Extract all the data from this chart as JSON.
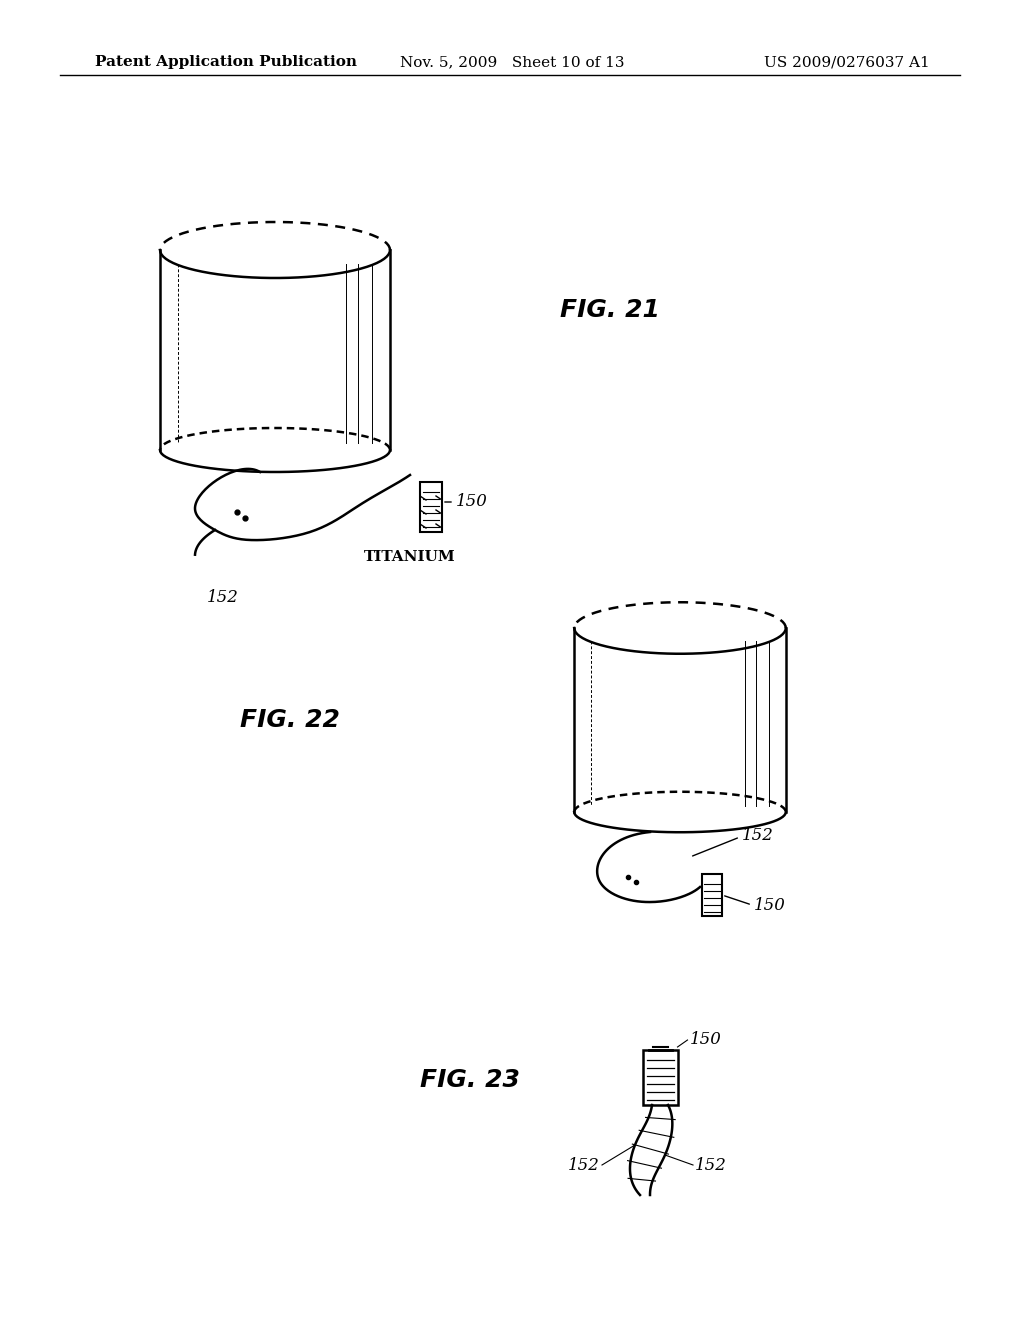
{
  "background_color": "#ffffff",
  "header_left": "Patent Application Publication",
  "header_mid": "Nov. 5, 2009   Sheet 10 of 13",
  "header_right": "US 2009/0276037 A1",
  "fig21_label": "FIG. 21",
  "fig22_label": "FIG. 22",
  "fig23_label": "FIG. 23",
  "label_150_fig21": "150",
  "label_152_fig21": "152",
  "label_titanium": "TITANIUM",
  "label_150_fig22": "150",
  "label_152_fig22": "152",
  "label_150_fig23": "150",
  "label_152a_fig23": "152",
  "label_152b_fig23": "152",
  "line_color": "#000000",
  "text_color": "#000000",
  "header_fontsize": 11,
  "fig_label_fontsize": 18,
  "ref_fontsize": 12
}
